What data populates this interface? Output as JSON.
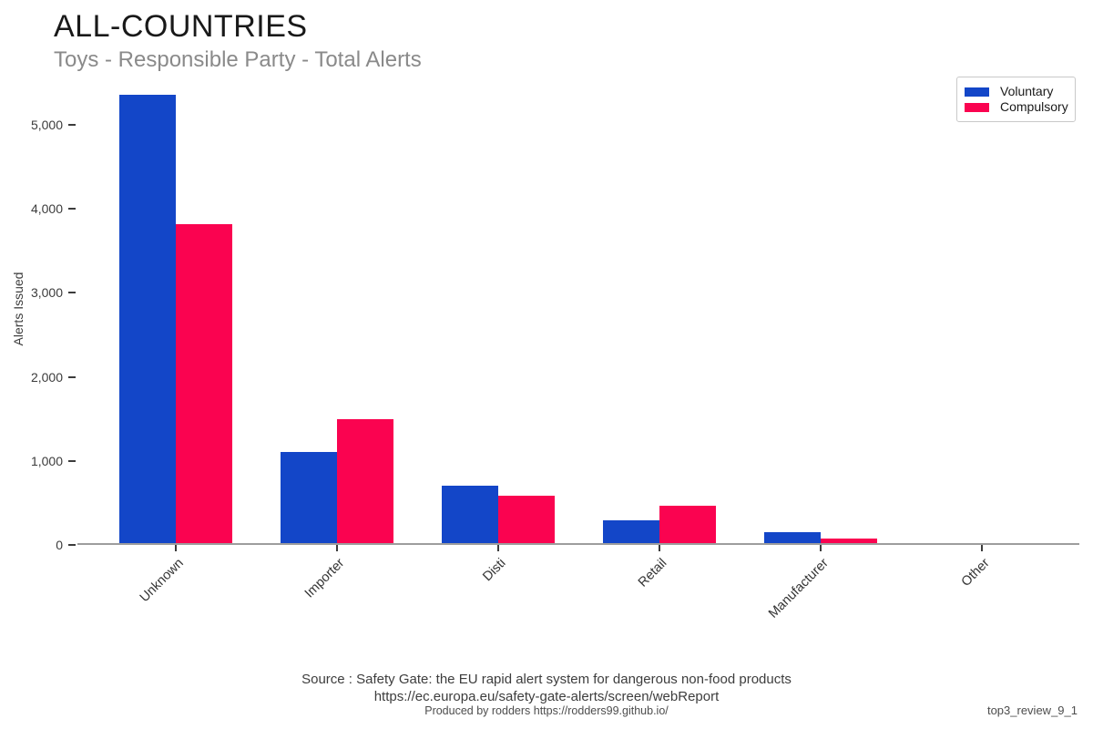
{
  "header": {
    "title": "ALL-COUNTRIES",
    "subtitle": "Toys - Responsible Party - Total Alerts"
  },
  "chart_data": {
    "type": "bar",
    "title": "ALL-COUNTRIES",
    "subtitle": "Toys - Responsible Party - Total Alerts",
    "categories": [
      "Unknown",
      "Importer",
      "Disti",
      "Retail",
      "Manufacturer",
      "Other"
    ],
    "series": [
      {
        "name": "Voluntary",
        "color": "#1346c8",
        "values": [
          5340,
          1080,
          680,
          270,
          130,
          0
        ]
      },
      {
        "name": "Compulsory",
        "color": "#fa0350",
        "values": [
          3800,
          1480,
          560,
          440,
          50,
          0
        ]
      }
    ],
    "xlabel": "",
    "ylabel": "Alerts Issued",
    "yticks": [
      0,
      1000,
      2000,
      3000,
      4000,
      5000
    ],
    "ytick_labels": [
      "0",
      "1,000",
      "2,000",
      "3,000",
      "4,000",
      "5,000"
    ],
    "ylim": [
      0,
      5400
    ],
    "grid": false,
    "legend_position": "top-right",
    "bar_orientation": "vertical",
    "x_label_rotation_deg": 45
  },
  "footer": {
    "source_line1": "Source : Safety Gate: the EU rapid alert system for dangerous non-food products",
    "source_line2": "https://ec.europa.eu/safety-gate-alerts/screen/webReport",
    "produced_by": "Produced by rodders https://rodders99.github.io/",
    "watermark": "top3_review_9_1"
  }
}
